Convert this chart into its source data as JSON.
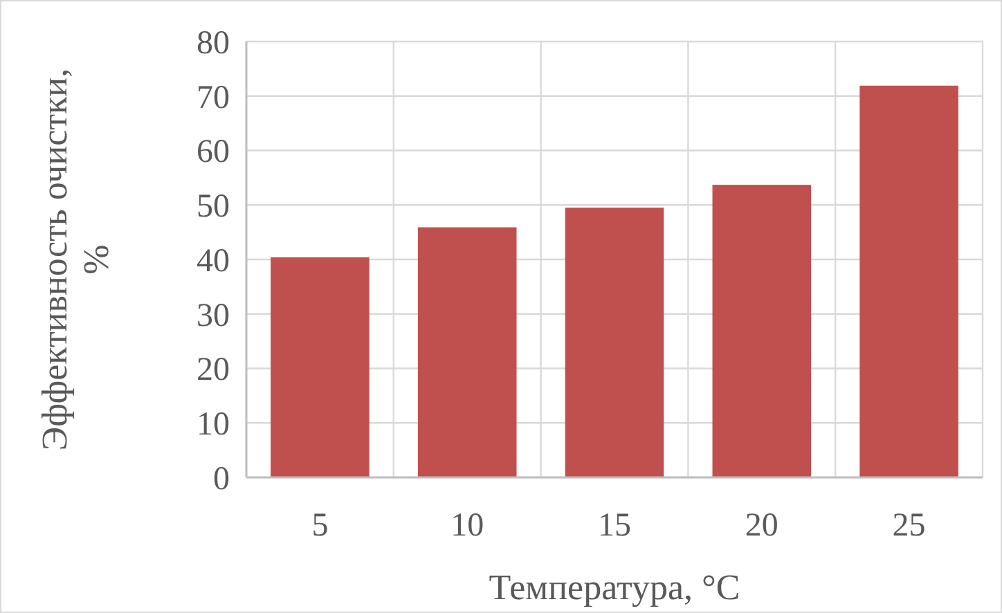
{
  "chart_data": {
    "type": "bar",
    "xlabel": "Температура, °C",
    "ylabel": "Эффективность очистки, %",
    "categories": [
      "5",
      "10",
      "15",
      "20",
      "25"
    ],
    "values": [
      40.4,
      45.9,
      49.5,
      53.7,
      71.9
    ],
    "color": "#c0504d",
    "ylim": [
      0,
      80
    ],
    "yticks": [
      0,
      10,
      20,
      30,
      40,
      50,
      60,
      70,
      80
    ],
    "grid": true
  }
}
